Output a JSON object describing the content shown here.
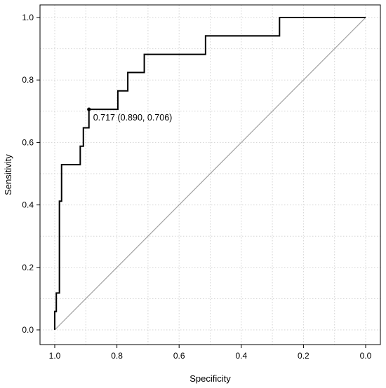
{
  "chart_data": {
    "type": "line",
    "title": "",
    "xlabel": "Specificity",
    "ylabel": "Sensitivity",
    "xlim": [
      1.0,
      0.0
    ],
    "ylim": [
      0.0,
      1.0
    ],
    "x_reversed": true,
    "grid": true,
    "x_ticks": [
      1.0,
      0.8,
      0.6,
      0.4,
      0.2,
      0.0
    ],
    "x_tick_labels": [
      "1.0",
      "0.8",
      "0.6",
      "0.4",
      "0.2",
      "0.0"
    ],
    "y_ticks": [
      0.0,
      0.2,
      0.4,
      0.6,
      0.8,
      1.0
    ],
    "y_tick_labels": [
      "0.0",
      "0.2",
      "0.4",
      "0.6",
      "0.8",
      "1.0"
    ],
    "series": [
      {
        "x": [
          1.0,
          1.0,
          0.995,
          0.995,
          0.985,
          0.985,
          0.978,
          0.978,
          0.968,
          0.968,
          0.918,
          0.918,
          0.908,
          0.908,
          0.89,
          0.89,
          0.797,
          0.797,
          0.765,
          0.765,
          0.712,
          0.712,
          0.515,
          0.515,
          0.277,
          0.277,
          0.0
        ],
        "y": [
          0.0,
          0.059,
          0.059,
          0.118,
          0.118,
          0.412,
          0.412,
          0.529,
          0.529,
          0.529,
          0.529,
          0.588,
          0.588,
          0.647,
          0.647,
          0.706,
          0.706,
          0.765,
          0.765,
          0.824,
          0.824,
          0.882,
          0.882,
          0.941,
          0.941,
          1.0,
          1.0
        ],
        "color": "#000000"
      }
    ],
    "reference_line": {
      "from": [
        1.0,
        0.0
      ],
      "to": [
        0.0,
        1.0
      ],
      "color": "#a0a0a0"
    },
    "threshold_point": {
      "x": 0.89,
      "y": 0.706,
      "label": "0.717 (0.890, 0.706)"
    }
  }
}
